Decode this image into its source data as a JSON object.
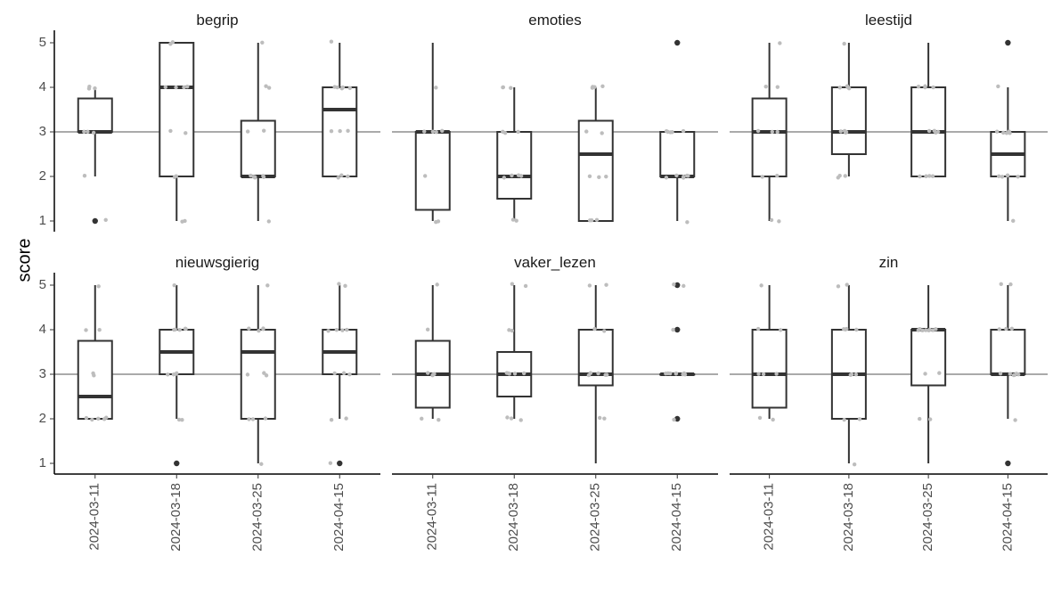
{
  "chart_data": {
    "type": "boxplot",
    "ylabel": "score",
    "xlabel": "",
    "ylim": [
      0.8,
      5.2
    ],
    "yticks": [
      1,
      2,
      3,
      4,
      5
    ],
    "reference_line_y": 3,
    "categories": [
      "2024-03-11",
      "2024-03-18",
      "2024-03-25",
      "2024-04-15"
    ],
    "grid": false,
    "colors": {
      "box": "#333333",
      "point": "#bdbdbd",
      "outlier": "#333333",
      "refline": "#555555"
    },
    "facets": [
      {
        "title": "begrip",
        "boxes": [
          {
            "q1": 3,
            "median": 3,
            "q3": 3.75,
            "whisker_low": 2,
            "whisker_high": 4,
            "outliers": [
              1
            ]
          },
          {
            "q1": 2,
            "median": 4,
            "q3": 5,
            "whisker_low": 1,
            "whisker_high": 5,
            "outliers": []
          },
          {
            "q1": 2,
            "median": 2,
            "q3": 3.25,
            "whisker_low": 1,
            "whisker_high": 5,
            "outliers": []
          },
          {
            "q1": 2,
            "median": 3.5,
            "q3": 4,
            "whisker_low": 2,
            "whisker_high": 5,
            "outliers": []
          }
        ],
        "points": [
          [
            3,
            4,
            4,
            3,
            3,
            2,
            1,
            4
          ],
          [
            5,
            5,
            4,
            4,
            4,
            3,
            3,
            2,
            2,
            1,
            1,
            4
          ],
          [
            2,
            2,
            2,
            2,
            3,
            3,
            4,
            4,
            1,
            5,
            2,
            2
          ],
          [
            4,
            4,
            4,
            4,
            3,
            3,
            3,
            2,
            2,
            2,
            5,
            4
          ]
        ]
      },
      {
        "title": "emoties",
        "boxes": [
          {
            "q1": 1.25,
            "median": 3,
            "q3": 3,
            "whisker_low": 1,
            "whisker_high": 5,
            "outliers": []
          },
          {
            "q1": 1.5,
            "median": 2,
            "q3": 3,
            "whisker_low": 1,
            "whisker_high": 4,
            "outliers": []
          },
          {
            "q1": 1,
            "median": 2.5,
            "q3": 3.25,
            "whisker_low": 1,
            "whisker_high": 4,
            "outliers": []
          },
          {
            "q1": 2,
            "median": 2,
            "q3": 3,
            "whisker_low": 1,
            "whisker_high": 3,
            "outliers": [
              5
            ]
          }
        ],
        "points": [
          [
            4,
            3,
            3,
            2,
            1,
            1,
            3,
            3
          ],
          [
            4,
            4,
            4,
            3,
            3,
            2,
            2,
            2,
            1,
            1,
            2,
            3
          ],
          [
            4,
            4,
            4,
            3,
            2,
            2,
            1,
            1,
            1,
            3,
            4,
            2
          ],
          [
            3,
            3,
            3,
            2,
            2,
            2,
            1,
            2,
            2,
            3,
            2,
            3
          ]
        ]
      },
      {
        "title": "leestijd",
        "boxes": [
          {
            "q1": 2,
            "median": 3,
            "q3": 3.75,
            "whisker_low": 1,
            "whisker_high": 5,
            "outliers": []
          },
          {
            "q1": 2.5,
            "median": 3,
            "q3": 4,
            "whisker_low": 2,
            "whisker_high": 5,
            "outliers": []
          },
          {
            "q1": 2,
            "median": 3,
            "q3": 4,
            "whisker_low": 2,
            "whisker_high": 5,
            "outliers": []
          },
          {
            "q1": 2,
            "median": 2.5,
            "q3": 3,
            "whisker_low": 1,
            "whisker_high": 4,
            "outliers": [
              5
            ]
          }
        ],
        "points": [
          [
            5,
            4,
            4,
            3,
            3,
            2,
            2,
            1,
            1,
            3
          ],
          [
            5,
            4,
            4,
            4,
            3,
            3,
            3,
            2,
            2,
            2,
            4,
            3
          ],
          [
            4,
            4,
            4,
            3,
            3,
            3,
            2,
            2,
            2,
            4,
            3,
            2
          ],
          [
            4,
            3,
            3,
            3,
            2,
            2,
            2,
            1,
            2,
            3,
            2,
            3
          ]
        ]
      },
      {
        "title": "nieuwsgierig",
        "boxes": [
          {
            "q1": 2,
            "median": 2.5,
            "q3": 3.75,
            "whisker_low": 2,
            "whisker_high": 5,
            "outliers": []
          },
          {
            "q1": 3,
            "median": 3.5,
            "q3": 4,
            "whisker_low": 2,
            "whisker_high": 5,
            "outliers": [
              1
            ]
          },
          {
            "q1": 2,
            "median": 3.5,
            "q3": 4,
            "whisker_low": 1,
            "whisker_high": 5,
            "outliers": []
          },
          {
            "q1": 3,
            "median": 3.5,
            "q3": 4,
            "whisker_low": 2,
            "whisker_high": 5,
            "outliers": [
              1
            ]
          }
        ],
        "points": [
          [
            5,
            4,
            4,
            3,
            3,
            2,
            2,
            2,
            2,
            2
          ],
          [
            5,
            4,
            4,
            4,
            3,
            3,
            3,
            2,
            2,
            4,
            3,
            4
          ],
          [
            5,
            4,
            4,
            4,
            3,
            3,
            2,
            2,
            1,
            4,
            3,
            2
          ],
          [
            5,
            5,
            4,
            4,
            4,
            3,
            3,
            2,
            2,
            1,
            4,
            3
          ]
        ]
      },
      {
        "title": "vaker_lezen",
        "boxes": [
          {
            "q1": 2.25,
            "median": 3,
            "q3": 3.75,
            "whisker_low": 2,
            "whisker_high": 5,
            "outliers": []
          },
          {
            "q1": 2.5,
            "median": 3,
            "q3": 3.5,
            "whisker_low": 2,
            "whisker_high": 5,
            "outliers": []
          },
          {
            "q1": 2.75,
            "median": 3,
            "q3": 4,
            "whisker_low": 1,
            "whisker_high": 5,
            "outliers": []
          },
          {
            "q1": 3,
            "median": 3,
            "q3": 3,
            "whisker_low": 3,
            "whisker_high": 3,
            "outliers": [
              5,
              4,
              2
            ]
          }
        ],
        "points": [
          [
            5,
            4,
            3,
            3,
            3,
            2,
            2,
            3
          ],
          [
            5,
            5,
            4,
            3,
            3,
            3,
            2,
            2,
            2,
            3,
            4,
            3
          ],
          [
            5,
            5,
            4,
            3,
            3,
            3,
            3,
            2,
            2,
            4,
            3,
            3
          ],
          [
            5,
            5,
            4,
            3,
            3,
            3,
            3,
            3,
            2,
            3,
            3,
            3
          ]
        ]
      },
      {
        "title": "zin",
        "boxes": [
          {
            "q1": 2.25,
            "median": 3,
            "q3": 4,
            "whisker_low": 2,
            "whisker_high": 5,
            "outliers": []
          },
          {
            "q1": 2,
            "median": 3,
            "q3": 4,
            "whisker_low": 1,
            "whisker_high": 5,
            "outliers": []
          },
          {
            "q1": 2.75,
            "median": 4,
            "q3": 4,
            "whisker_low": 1,
            "whisker_high": 5,
            "outliers": []
          },
          {
            "q1": 3,
            "median": 3,
            "q3": 4,
            "whisker_low": 2,
            "whisker_high": 5,
            "outliers": [
              1
            ]
          }
        ],
        "points": [
          [
            5,
            4,
            4,
            3,
            3,
            2,
            2,
            3
          ],
          [
            5,
            5,
            4,
            4,
            4,
            3,
            3,
            2,
            2,
            1,
            3,
            4
          ],
          [
            4,
            4,
            4,
            4,
            4,
            3,
            3,
            2,
            2,
            4,
            4,
            4
          ],
          [
            5,
            5,
            4,
            4,
            3,
            3,
            3,
            3,
            2,
            4,
            3,
            3
          ]
        ]
      }
    ]
  }
}
